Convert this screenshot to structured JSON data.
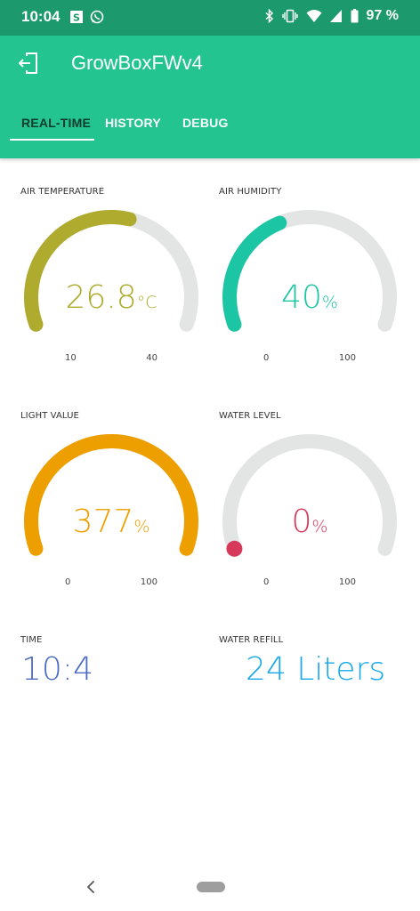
{
  "status": {
    "time": "10:04",
    "battery": "97 %",
    "icons": [
      "s-notification-icon",
      "whatsapp-icon",
      "bluetooth-icon",
      "vibrate-icon",
      "wifi-icon",
      "signal-icon",
      "battery-icon"
    ]
  },
  "app": {
    "title": "GrowBoxFWv4",
    "back_icon": "back-arrow-icon",
    "tabs": [
      {
        "label": "REAL-TIME",
        "active": true
      },
      {
        "label": "HISTORY",
        "active": false
      },
      {
        "label": "DEBUG",
        "active": false
      }
    ]
  },
  "widgets": {
    "air_temperature": {
      "label": "AIR TEMPERATURE",
      "value": "26.8",
      "unit": "°C",
      "min": "10",
      "max": "40",
      "level": 0.56,
      "color": "#aeab2e"
    },
    "air_humidity": {
      "label": "AIR HUMIDITY",
      "value": "40",
      "unit": "%",
      "min": "0",
      "max": "100",
      "level": 0.4,
      "color": "#1cc5a3"
    },
    "light_value": {
      "label": "LIGHT VALUE",
      "value": "377",
      "unit": "%",
      "min": "0",
      "max": "100",
      "level": 1.0,
      "color": "#ee9f00"
    },
    "water_level": {
      "label": "WATER LEVEL",
      "value": "0",
      "unit": "%",
      "min": "0",
      "max": "100",
      "level": 0.0,
      "color": "#d6395a"
    },
    "time": {
      "label": "TIME",
      "value": "10:4",
      "color": "#4a6ac5"
    },
    "water_refill": {
      "label": "WATER REFILL",
      "value": "24 Liters",
      "color": "#19a8e8"
    }
  },
  "colors": {
    "status_bar": "#1c9a6e",
    "app_bar": "#23c48f",
    "gauge_track": "#e3e4e4"
  }
}
